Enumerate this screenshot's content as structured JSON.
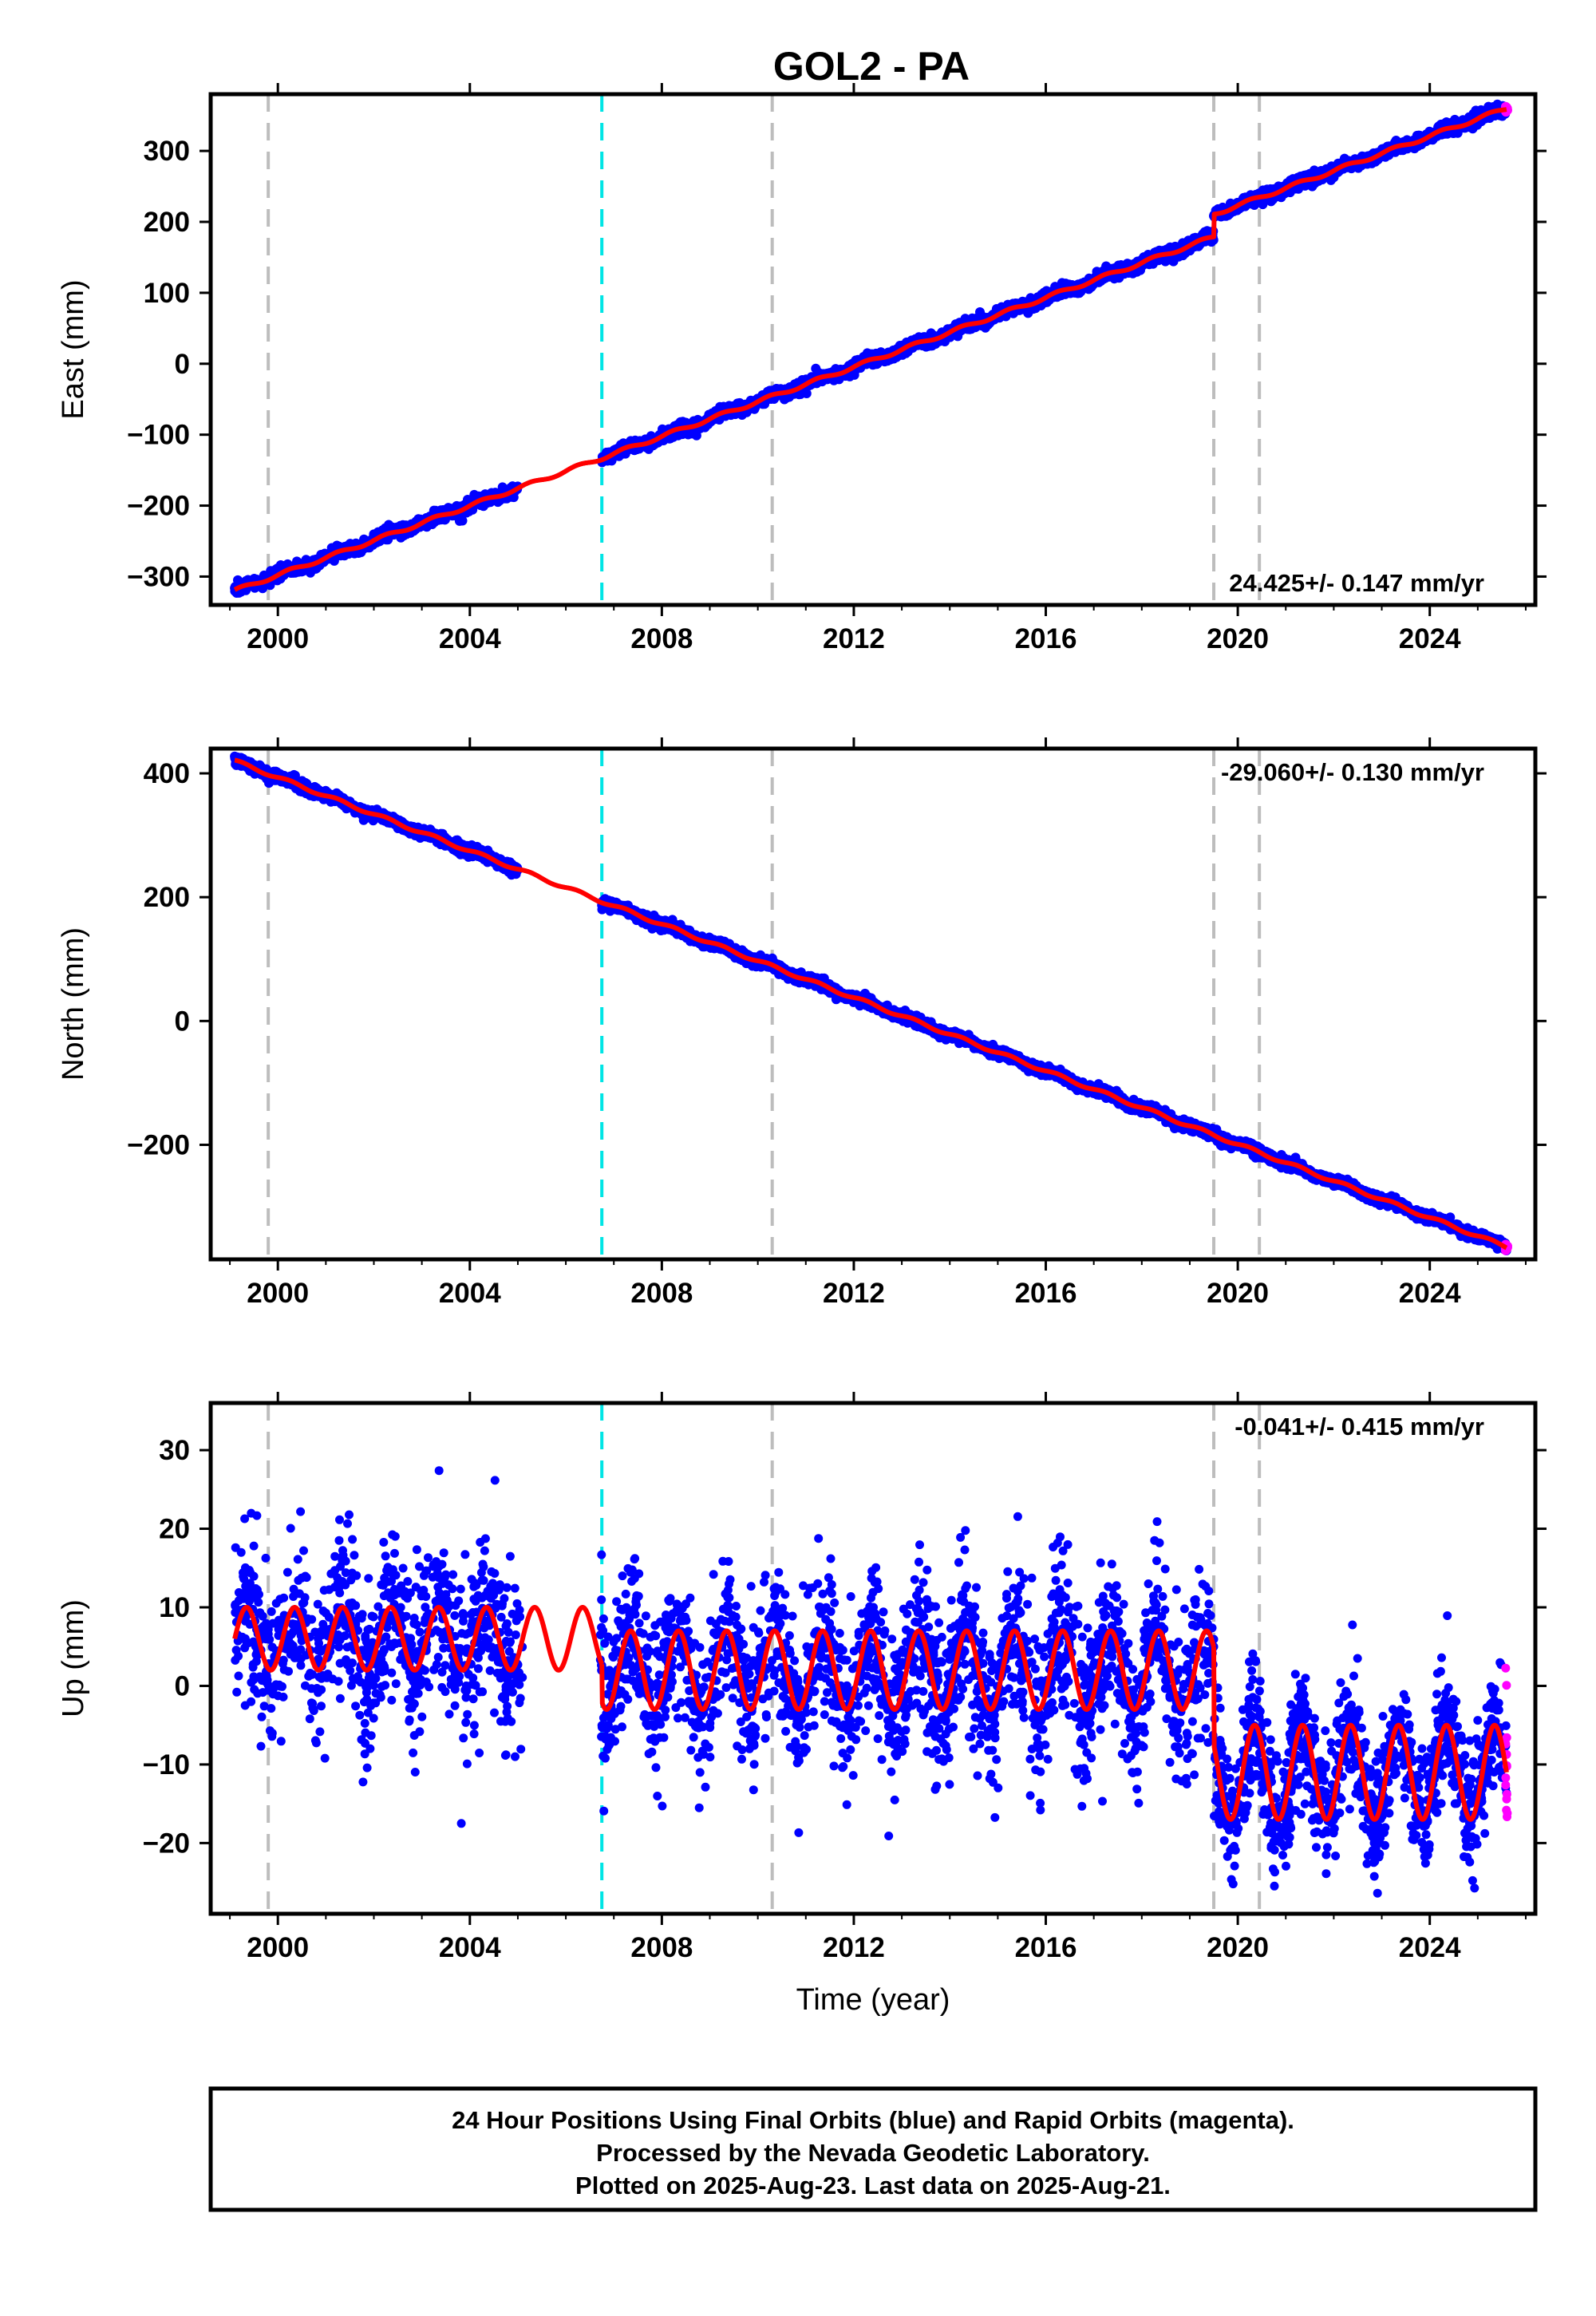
{
  "title": "GOL2 - PA",
  "colors": {
    "final_orbits": "#0000ff",
    "rapid_orbits": "#ff00ff",
    "model": "#ff0000",
    "antenna_change": "#bdbdbd",
    "event": "#00e5e5"
  },
  "chart_data": [
    {
      "type": "scatter",
      "name": "east",
      "ylabel": "East (mm)",
      "xlabel": "",
      "xlim": [
        1998.6,
        2026.2
      ],
      "ylim": [
        -340,
        380
      ],
      "x_ticks": [
        "2000",
        "2004",
        "2008",
        "2012",
        "2016",
        "2020",
        "2024"
      ],
      "y_ticks": [
        "300",
        "200",
        "100",
        "0",
        "−100",
        "−200",
        "−300"
      ],
      "y_tick_values": [
        300,
        200,
        100,
        0,
        -100,
        -200,
        -300
      ],
      "rate_label": "24.425+/- 0.147 mm/yr",
      "rate_mm_per_yr": 24.425,
      "offsets": [
        {
          "year": 2019.5,
          "mm": 32
        }
      ],
      "data_gap": [
        2005.0,
        2006.75
      ],
      "noise_mm": 4,
      "start": {
        "year": 1999.1,
        "mm": -320
      },
      "end": {
        "year": 2025.6,
        "mm": 360
      },
      "vlines_gray": [
        1999.8,
        2010.3,
        2019.5,
        2020.45
      ],
      "vlines_cyan": [
        2006.75
      ]
    },
    {
      "type": "scatter",
      "name": "north",
      "ylabel": "North (mm)",
      "xlabel": "",
      "xlim": [
        1998.6,
        2026.2
      ],
      "ylim": [
        -385,
        440
      ],
      "x_ticks": [
        "2000",
        "2004",
        "2008",
        "2012",
        "2016",
        "2020",
        "2024"
      ],
      "y_ticks": [
        "400",
        "200",
        "0",
        "−200"
      ],
      "y_tick_values": [
        400,
        200,
        0,
        -200
      ],
      "rate_label": "-29.060+/- 0.130 mm/yr",
      "rate_mm_per_yr": -29.06,
      "offsets": [],
      "data_gap": [
        2005.0,
        2006.75
      ],
      "noise_mm": 4,
      "start": {
        "year": 1999.1,
        "mm": 420
      },
      "end": {
        "year": 2025.6,
        "mm": -365
      },
      "vlines_gray": [
        1999.8,
        2010.3,
        2019.5,
        2020.45
      ],
      "vlines_cyan": [
        2006.75
      ]
    },
    {
      "type": "scatter",
      "name": "up",
      "ylabel": "Up (mm)",
      "xlabel": "Time (year)",
      "xlim": [
        1998.6,
        2026.2
      ],
      "ylim": [
        -29,
        36
      ],
      "x_ticks": [
        "2000",
        "2004",
        "2008",
        "2012",
        "2016",
        "2020",
        "2024"
      ],
      "y_ticks": [
        "30",
        "20",
        "10",
        "0",
        "−10",
        "−20"
      ],
      "y_tick_values": [
        30,
        20,
        10,
        0,
        -10,
        -20
      ],
      "rate_label": "-0.041+/- 0.415 mm/yr",
      "rate_mm_per_yr": -0.041,
      "segments": [
        {
          "from": 1999.1,
          "to": 2006.75,
          "mean_mm": 6,
          "amp_mm": 4,
          "noise_mm": 5,
          "points": 1100,
          "data_gap": [
            2005.1,
            2006.7
          ]
        },
        {
          "from": 2006.75,
          "to": 2019.5,
          "mean_mm": 2,
          "amp_mm": 5,
          "noise_mm": 5,
          "points": 1900
        },
        {
          "from": 2019.5,
          "to": 2025.6,
          "mean_mm": -11,
          "amp_mm": 6,
          "noise_mm": 4,
          "points": 1000
        }
      ],
      "vlines_gray": [
        1999.8,
        2010.3,
        2019.5,
        2020.45
      ],
      "vlines_cyan": [
        2006.75
      ]
    }
  ],
  "footer": {
    "line1": "24 Hour Positions Using Final Orbits (blue) and Rapid Orbits (magenta).",
    "line2": "Processed by the Nevada Geodetic Laboratory.",
    "line3": "Plotted on 2025-Aug-23. Last data on 2025-Aug-21."
  }
}
